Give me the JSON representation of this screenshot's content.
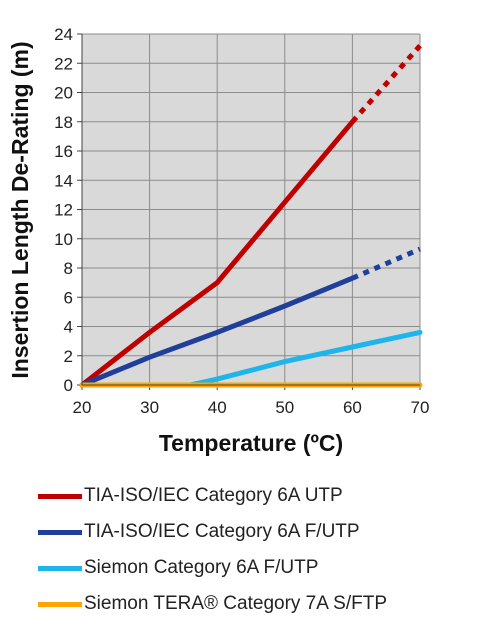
{
  "chart_data": {
    "type": "line",
    "title": "",
    "xlabel": "Temperature (ºC)",
    "ylabel": "Insertion Length De-Rating (m)",
    "xlim": [
      20,
      70
    ],
    "ylim": [
      0,
      24
    ],
    "xticks": [
      20,
      30,
      40,
      50,
      60,
      70
    ],
    "yticks": [
      0,
      2,
      4,
      6,
      8,
      10,
      12,
      14,
      16,
      18,
      20,
      22,
      24
    ],
    "grid": true,
    "plot_background": "#d9d9d9",
    "legend_position": "bottom",
    "series": [
      {
        "name": "TIA-ISO/IEC Category 6A UTP",
        "color": "#c00000",
        "solid": [
          [
            20,
            0
          ],
          [
            30,
            3.6
          ],
          [
            40,
            7.0
          ],
          [
            50,
            12.5
          ],
          [
            60,
            18.0
          ]
        ],
        "dotted": [
          [
            60,
            18.0
          ],
          [
            70,
            23.2
          ]
        ]
      },
      {
        "name": "TIA-ISO/IEC Category 6A F/UTP",
        "color": "#1f3f9a",
        "solid": [
          [
            20,
            0
          ],
          [
            30,
            1.9
          ],
          [
            40,
            3.6
          ],
          [
            50,
            5.4
          ],
          [
            60,
            7.3
          ]
        ],
        "dotted": [
          [
            60,
            7.3
          ],
          [
            70,
            9.3
          ]
        ]
      },
      {
        "name": "Siemon Category 6A F/UTP",
        "color": "#1eb4ec",
        "solid": [
          [
            20,
            0
          ],
          [
            36,
            0
          ],
          [
            40,
            0.4
          ],
          [
            50,
            1.6
          ],
          [
            60,
            2.6
          ],
          [
            70,
            3.6
          ]
        ],
        "dotted": []
      },
      {
        "name": "Siemon TERA® Category 7A S/FTP",
        "color": "#ffa500",
        "solid": [
          [
            20,
            0
          ],
          [
            70,
            0
          ]
        ],
        "dotted": []
      }
    ]
  },
  "legend": {
    "items": [
      {
        "label": "TIA-ISO/IEC Category 6A UTP",
        "color": "#c00000"
      },
      {
        "label": "TIA-ISO/IEC Category 6A F/UTP",
        "color": "#1f3f9a"
      },
      {
        "label": "Siemon Category 6A F/UTP",
        "color": "#1eb4ec"
      },
      {
        "label": "Siemon TERA® Category 7A S/FTP",
        "color": "#ffa500"
      }
    ]
  }
}
